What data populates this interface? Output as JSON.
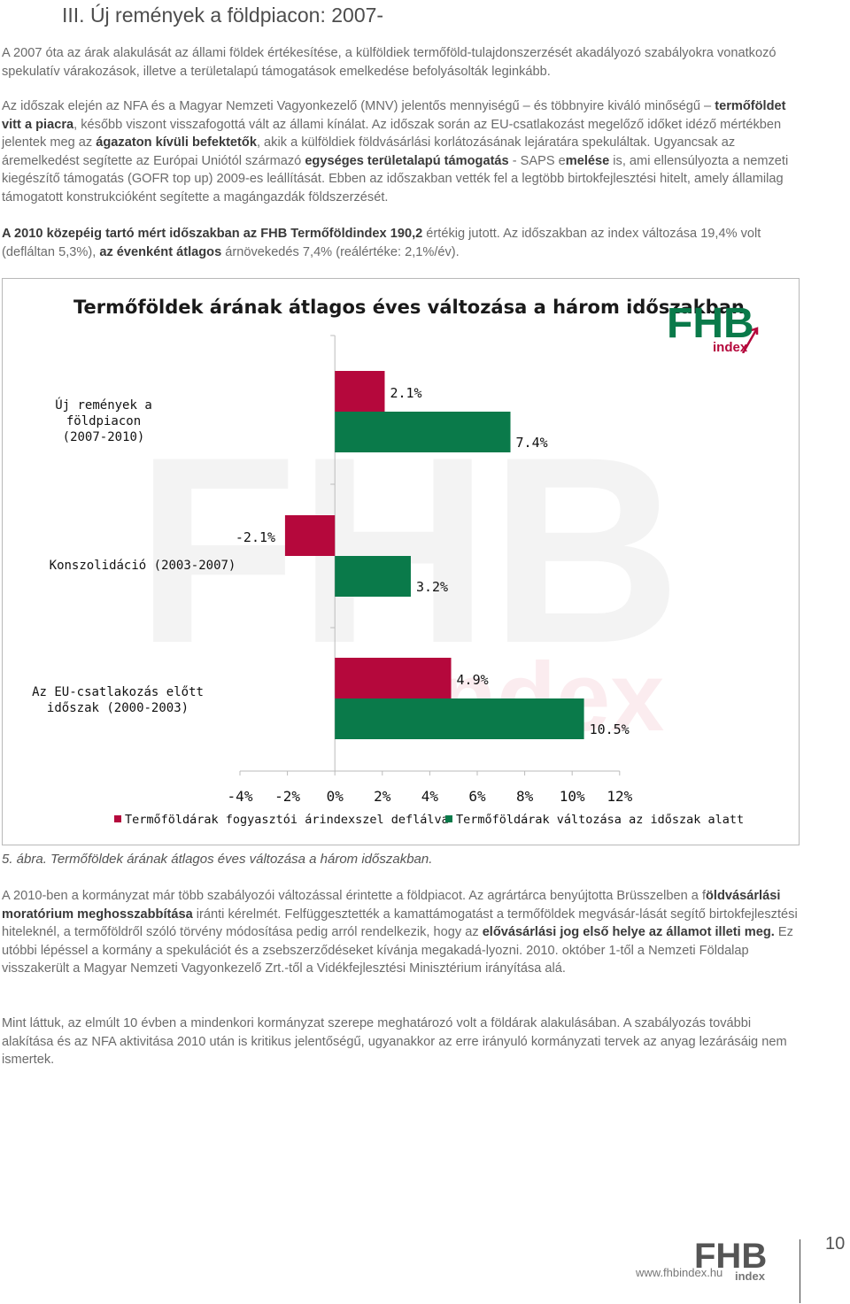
{
  "heading": "III. Új remények a földpiacon: 2007-",
  "para1": "A 2007 óta az árak alakulását az állami földek értékesítése, a külföldiek termőföld-tulajdonszerzését akadályozó szabályokra vonatkozó spekulatív várakozások, illetve a területalapú támogatások emelkedése befolyásolták leginkább.",
  "para2": {
    "t1": "Az időszak elején az NFA és a Magyar Nemzeti Vagyonkezelő (MNV) jelentős mennyiségű – és többnyire kiváló minőségű – ",
    "b1": "termőföldet vitt a piacra",
    "t2": ", később viszont visszafogottá vált az állami kínálat. Az időszak során az EU-csatlakozást megelőző időket idéző mértékben jelentek meg az ",
    "b2": "ágazaton kívüli befektetők",
    "t3": ", akik a külföldiek földvásárlási korlátozásának lejáratára spekuláltak. Ugyancsak az áremelkedést segítette az Európai Uniótól származó ",
    "b3": "egységes területalapú támogatás",
    "t4": " - SAPS e",
    "b4": "melése",
    "t5": " is, ami ellensúlyozta a nemzeti kiegészítő támogatás (GOFR top up) 2009-es leállítását. Ebben az időszakban vették fel a legtöbb birtokfejlesztési hitelt, amely államilag támogatott konstrukcióként segítette a magángazdák földszerzését."
  },
  "para3": {
    "b1": "A 2010 közepéig tartó mért időszakban az FHB Termőföldindex 190,2",
    "t1": " értékig jutott. Az időszakban az index változása 19,4% volt (defláltan 5,3%), ",
    "b2": "az évenként átlagos",
    "t2": " árnövekedés 7,4% (reálértéke: 2,1%/év)."
  },
  "logo": {
    "main": "FHB",
    "sub": "index"
  },
  "chart_data": {
    "type": "bar",
    "orientation": "horizontal",
    "title": "Termőföldek árának átlagos éves változása a három időszakban",
    "categories": [
      "Új remények a földpiacon\n(2007-2010)",
      "Konszolidáció (2003-2007)",
      "Az EU-csatlakozás előtt\nidőszak (2000-2003)"
    ],
    "series": [
      {
        "name": "Termőföldárak fogyasztói árindexszel deflálva",
        "color": "#b5083c",
        "values": [
          2.1,
          -2.1,
          4.9
        ],
        "labels": [
          "2.1%",
          "-2.1%",
          "4.9%"
        ]
      },
      {
        "name": "Termőföldárak változása az időszak alatt",
        "color": "#0a7a4a",
        "values": [
          7.4,
          3.2,
          10.5
        ],
        "labels": [
          "7.4%",
          "3.2%",
          "10.5%"
        ]
      }
    ],
    "xlim": [
      -4,
      12
    ],
    "xticks": [
      -4,
      -2,
      0,
      2,
      4,
      6,
      8,
      10,
      12
    ],
    "xtick_labels": [
      "-4%",
      "-2%",
      "0%",
      "2%",
      "4%",
      "6%",
      "8%",
      "10%",
      "12%"
    ],
    "grid": false,
    "legend_position": "bottom"
  },
  "caption": "5. ábra. Termőföldek árának átlagos éves változása a három időszakban.",
  "para4": {
    "t1": "A 2010-ben a kormányzat már több szabályozói változással érintette a földpiacot. Az agrártárca benyújtotta Brüsszelben a f",
    "b1": "öldvásárlási moratórium meghosszabbítása",
    "t2": " iránti kérelmét. Felfüggesztették a kamattámogatást a termőföldek megvásár-lását segítő birtokfejlesztési hiteleknél, a termőföldről szóló törvény módosítása pedig arról rendelkezik, hogy az ",
    "b2": "elővásárlási jog első helye az államot illeti meg.",
    "t3": " Ez utóbbi lépéssel a kormány a spekulációt és a zsebszerződéseket kívánja megakadá-lyozni. 2010. október 1-től a Nemzeti Földalap visszakerült a Magyar Nemzeti Vagyonkezelő Zrt.-től a Vidékfejlesztési Minisztérium irányítása alá."
  },
  "para5": "Mint láttuk, az elmúlt 10 évben a mindenkori kormányzat szerepe meghatározó volt a földárak alakulásában. A szabályozás további alakítása és az NFA aktivitása 2010 után is kritikus jelentőségű, ugyanakkor az erre irányuló kormányzati tervek az anyag lezárásáig nem ismertek.",
  "footer": {
    "url": "www.fhbindex.hu",
    "page": "10"
  },
  "colors": {
    "red": "#b5083c",
    "green": "#0a7a4a"
  }
}
